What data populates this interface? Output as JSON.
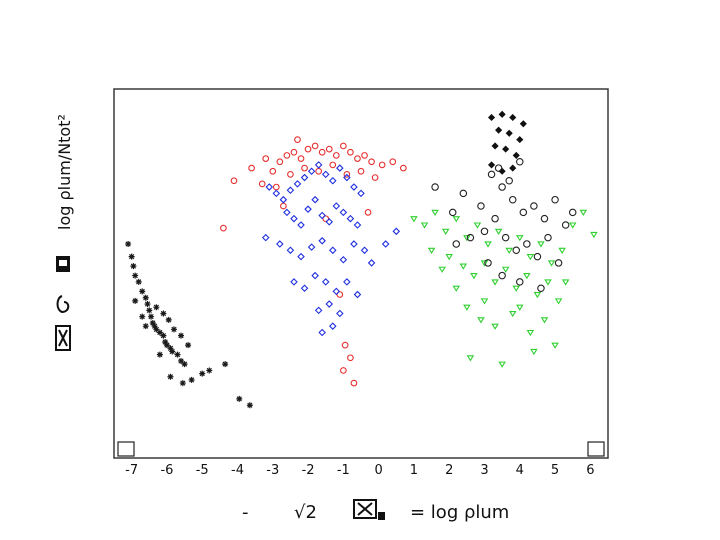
{
  "chart_data": {
    "type": "scatter",
    "title": "",
    "xlabel": "= log ρlum",
    "ylabel": "log ρlum/Ntot²",
    "xlim": [
      -7.5,
      6.5
    ],
    "x_ticks": [
      -7,
      -6,
      -5,
      -4,
      -3,
      -2,
      -1,
      0,
      1,
      2,
      3,
      4,
      5,
      6
    ],
    "grid": false,
    "legend": "none",
    "series": [
      {
        "color": "#1a1a1a",
        "marker": "star",
        "points": [
          [
            -7.1,
            0.62
          ],
          [
            -7.0,
            0.58
          ],
          [
            -6.95,
            0.55
          ],
          [
            -6.9,
            0.52
          ],
          [
            -6.8,
            0.5
          ],
          [
            -6.7,
            0.47
          ],
          [
            -6.6,
            0.45
          ],
          [
            -6.55,
            0.43
          ],
          [
            -6.5,
            0.41
          ],
          [
            -6.45,
            0.39
          ],
          [
            -6.4,
            0.37
          ],
          [
            -6.35,
            0.36
          ],
          [
            -6.3,
            0.35
          ],
          [
            -6.2,
            0.34
          ],
          [
            -6.1,
            0.33
          ],
          [
            -6.05,
            0.31
          ],
          [
            -6.0,
            0.3
          ],
          [
            -5.9,
            0.29
          ],
          [
            -5.85,
            0.28
          ],
          [
            -5.7,
            0.27
          ],
          [
            -5.6,
            0.25
          ],
          [
            -5.5,
            0.24
          ],
          [
            -6.3,
            0.42
          ],
          [
            -6.1,
            0.4
          ],
          [
            -5.95,
            0.38
          ],
          [
            -5.8,
            0.35
          ],
          [
            -5.6,
            0.33
          ],
          [
            -5.4,
            0.3
          ],
          [
            -5.9,
            0.2
          ],
          [
            -5.55,
            0.18
          ],
          [
            -5.0,
            0.21
          ],
          [
            -4.8,
            0.22
          ],
          [
            -4.35,
            0.24
          ],
          [
            -3.95,
            0.13
          ],
          [
            -3.65,
            0.11
          ],
          [
            -6.6,
            0.36
          ],
          [
            -6.2,
            0.27
          ],
          [
            -5.3,
            0.19
          ],
          [
            -6.9,
            0.44
          ],
          [
            -6.7,
            0.39
          ]
        ]
      },
      {
        "color": "#e63030",
        "marker": "circle",
        "points": [
          [
            -4.1,
            0.82
          ],
          [
            -3.6,
            0.86
          ],
          [
            -3.3,
            0.81
          ],
          [
            -3.0,
            0.85
          ],
          [
            -2.8,
            0.88
          ],
          [
            -2.6,
            0.9
          ],
          [
            -2.4,
            0.91
          ],
          [
            -2.2,
            0.89
          ],
          [
            -2.0,
            0.92
          ],
          [
            -1.8,
            0.93
          ],
          [
            -1.6,
            0.91
          ],
          [
            -1.4,
            0.92
          ],
          [
            -1.2,
            0.9
          ],
          [
            -1.0,
            0.93
          ],
          [
            -0.8,
            0.91
          ],
          [
            -0.6,
            0.89
          ],
          [
            -0.4,
            0.9
          ],
          [
            -0.2,
            0.88
          ],
          [
            0.1,
            0.87
          ],
          [
            0.4,
            0.88
          ],
          [
            0.7,
            0.86
          ],
          [
            -2.9,
            0.8
          ],
          [
            -2.5,
            0.84
          ],
          [
            -2.1,
            0.86
          ],
          [
            -1.7,
            0.85
          ],
          [
            -1.3,
            0.87
          ],
          [
            -0.9,
            0.84
          ],
          [
            -0.5,
            0.85
          ],
          [
            -0.1,
            0.83
          ],
          [
            -4.4,
            0.67
          ],
          [
            -2.7,
            0.74
          ],
          [
            -1.1,
            0.46
          ],
          [
            -0.95,
            0.3
          ],
          [
            -0.8,
            0.26
          ],
          [
            -1.0,
            0.22
          ],
          [
            -0.7,
            0.18
          ],
          [
            -1.5,
            0.7
          ],
          [
            -0.3,
            0.72
          ],
          [
            -3.2,
            0.89
          ],
          [
            -2.3,
            0.95
          ]
        ]
      },
      {
        "color": "#1f2fe0",
        "marker": "diamond",
        "points": [
          [
            -3.1,
            0.8
          ],
          [
            -2.9,
            0.78
          ],
          [
            -2.7,
            0.76
          ],
          [
            -2.5,
            0.79
          ],
          [
            -2.3,
            0.81
          ],
          [
            -2.1,
            0.83
          ],
          [
            -1.9,
            0.85
          ],
          [
            -1.7,
            0.87
          ],
          [
            -1.5,
            0.84
          ],
          [
            -1.3,
            0.82
          ],
          [
            -1.1,
            0.86
          ],
          [
            -0.9,
            0.83
          ],
          [
            -0.7,
            0.8
          ],
          [
            -0.5,
            0.78
          ],
          [
            -2.6,
            0.72
          ],
          [
            -2.4,
            0.7
          ],
          [
            -2.2,
            0.68
          ],
          [
            -2.0,
            0.73
          ],
          [
            -1.8,
            0.76
          ],
          [
            -1.6,
            0.71
          ],
          [
            -1.4,
            0.69
          ],
          [
            -1.2,
            0.74
          ],
          [
            -1.0,
            0.72
          ],
          [
            -0.8,
            0.7
          ],
          [
            -0.6,
            0.68
          ],
          [
            -3.2,
            0.64
          ],
          [
            -2.8,
            0.62
          ],
          [
            -2.5,
            0.6
          ],
          [
            -2.2,
            0.58
          ],
          [
            -1.9,
            0.61
          ],
          [
            -1.6,
            0.63
          ],
          [
            -1.3,
            0.6
          ],
          [
            -1.0,
            0.57
          ],
          [
            -0.7,
            0.62
          ],
          [
            -0.4,
            0.6
          ],
          [
            -2.4,
            0.5
          ],
          [
            -2.1,
            0.48
          ],
          [
            -1.8,
            0.52
          ],
          [
            -1.5,
            0.5
          ],
          [
            -1.2,
            0.47
          ],
          [
            -0.9,
            0.5
          ],
          [
            -0.6,
            0.46
          ],
          [
            -1.7,
            0.41
          ],
          [
            -1.4,
            0.43
          ],
          [
            -1.1,
            0.4
          ],
          [
            -1.6,
            0.34
          ],
          [
            -1.3,
            0.36
          ],
          [
            -0.2,
            0.56
          ],
          [
            0.2,
            0.62
          ],
          [
            0.5,
            0.66
          ]
        ]
      },
      {
        "color": "#2fd02f",
        "marker": "triangle-down",
        "points": [
          [
            1.0,
            0.7
          ],
          [
            1.3,
            0.68
          ],
          [
            1.6,
            0.72
          ],
          [
            1.9,
            0.66
          ],
          [
            2.2,
            0.7
          ],
          [
            2.5,
            0.64
          ],
          [
            2.8,
            0.68
          ],
          [
            3.1,
            0.62
          ],
          [
            3.4,
            0.66
          ],
          [
            3.7,
            0.6
          ],
          [
            4.0,
            0.64
          ],
          [
            4.3,
            0.58
          ],
          [
            4.6,
            0.62
          ],
          [
            4.9,
            0.56
          ],
          [
            5.2,
            0.6
          ],
          [
            5.5,
            0.68
          ],
          [
            5.8,
            0.72
          ],
          [
            6.1,
            0.65
          ],
          [
            2.0,
            0.58
          ],
          [
            2.4,
            0.55
          ],
          [
            2.7,
            0.52
          ],
          [
            3.0,
            0.56
          ],
          [
            3.3,
            0.5
          ],
          [
            3.6,
            0.54
          ],
          [
            3.9,
            0.48
          ],
          [
            4.2,
            0.52
          ],
          [
            4.5,
            0.46
          ],
          [
            4.8,
            0.5
          ],
          [
            5.1,
            0.44
          ],
          [
            2.5,
            0.42
          ],
          [
            2.9,
            0.38
          ],
          [
            3.3,
            0.36
          ],
          [
            3.8,
            0.4
          ],
          [
            4.3,
            0.34
          ],
          [
            4.7,
            0.38
          ],
          [
            5.0,
            0.3
          ],
          [
            2.6,
            0.26
          ],
          [
            3.5,
            0.24
          ],
          [
            4.4,
            0.28
          ],
          [
            1.5,
            0.6
          ],
          [
            1.8,
            0.54
          ],
          [
            2.2,
            0.48
          ],
          [
            3.0,
            0.44
          ],
          [
            4.0,
            0.42
          ],
          [
            5.3,
            0.5
          ]
        ]
      },
      {
        "color": "#222222",
        "marker": "open-circle",
        "points": [
          [
            1.6,
            0.8
          ],
          [
            2.1,
            0.72
          ],
          [
            2.4,
            0.78
          ],
          [
            2.9,
            0.74
          ],
          [
            3.2,
            0.84
          ],
          [
            3.5,
            0.8
          ],
          [
            3.8,
            0.76
          ],
          [
            4.1,
            0.72
          ],
          [
            4.4,
            0.74
          ],
          [
            4.7,
            0.7
          ],
          [
            5.0,
            0.76
          ],
          [
            5.3,
            0.68
          ],
          [
            3.0,
            0.66
          ],
          [
            3.3,
            0.7
          ],
          [
            3.6,
            0.64
          ],
          [
            3.9,
            0.6
          ],
          [
            4.2,
            0.62
          ],
          [
            4.5,
            0.58
          ],
          [
            4.8,
            0.64
          ],
          [
            5.1,
            0.56
          ],
          [
            3.1,
            0.56
          ],
          [
            3.5,
            0.52
          ],
          [
            4.0,
            0.5
          ],
          [
            4.6,
            0.48
          ],
          [
            3.4,
            0.86
          ],
          [
            3.7,
            0.82
          ],
          [
            4.0,
            0.88
          ],
          [
            2.6,
            0.64
          ],
          [
            5.5,
            0.72
          ],
          [
            2.2,
            0.62
          ]
        ]
      },
      {
        "color": "#111111",
        "marker": "filled-diamond",
        "points": [
          [
            3.2,
            1.02
          ],
          [
            3.5,
            1.03
          ],
          [
            3.8,
            1.02
          ],
          [
            4.1,
            1.0
          ],
          [
            3.4,
            0.98
          ],
          [
            3.7,
            0.97
          ],
          [
            4.0,
            0.95
          ],
          [
            3.3,
            0.93
          ],
          [
            3.6,
            0.92
          ],
          [
            3.9,
            0.9
          ],
          [
            3.2,
            0.87
          ],
          [
            3.5,
            0.85
          ],
          [
            3.8,
            0.86
          ]
        ]
      }
    ]
  },
  "axes": {
    "x_label_prefix": "-",
    "x_label_sqrt": "√2"
  }
}
